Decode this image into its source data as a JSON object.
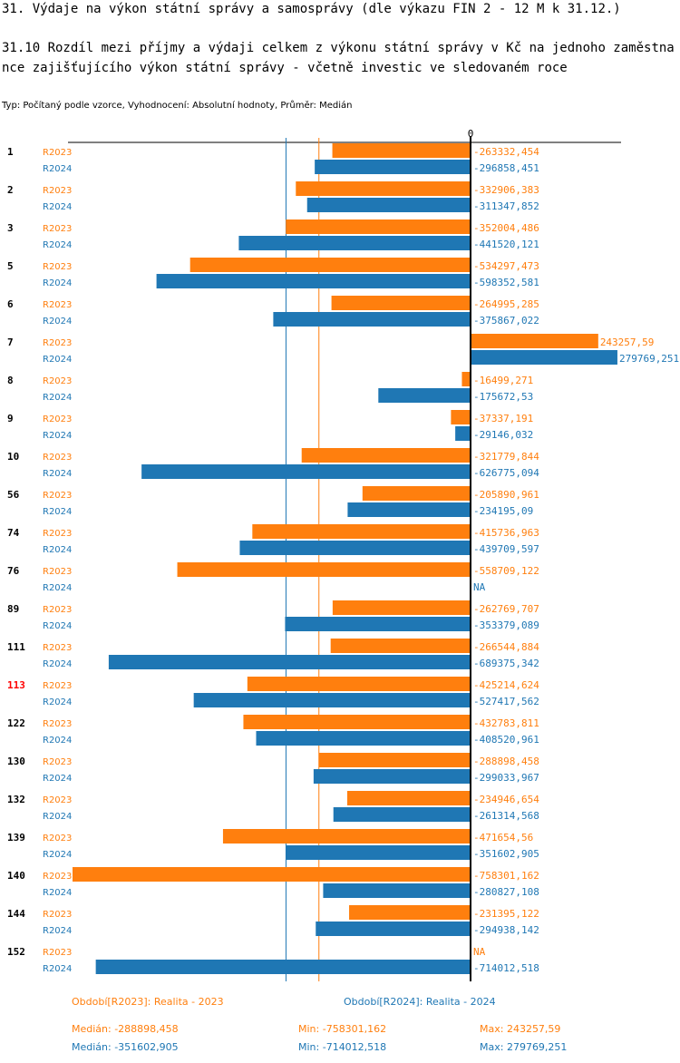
{
  "title": "31. Výdaje na výkon státní správy a samosprávy (dle výkazu FIN 2 - 12 M k 31.12.)",
  "subtitle": "31.10 Rozdíl mezi  příjmy a výdaji celkem z výkonu státní správy v Kč na jednoho zaměstnance zajišťujícího výkon státní správy - včetně investic ve sledovaném roce",
  "meta": "Typ: Počítaný podle vzorce, Vyhodnocení: Absolutní hodnoty, Průměr: Medián",
  "chart_data": {
    "type": "bar",
    "orientation": "horizontal",
    "zero_label": "0",
    "colors": {
      "R2023": "#ff7f0e",
      "R2024": "#1f77b4",
      "highlight": "#ff0000"
    },
    "highlight_category": "113",
    "categories": [
      "1",
      "2",
      "3",
      "5",
      "6",
      "7",
      "8",
      "9",
      "10",
      "56",
      "74",
      "76",
      "89",
      "111",
      "113",
      "122",
      "130",
      "132",
      "139",
      "140",
      "144",
      "152"
    ],
    "series": [
      {
        "name": "R2023",
        "values": [
          -263332.454,
          -332906.383,
          -352004.486,
          -534297.473,
          -264995.285,
          243257.59,
          -16499.271,
          -37337.191,
          -321779.844,
          -205890.961,
          -415736.963,
          -558709.122,
          -262769.707,
          -266544.884,
          -425214.624,
          -432783.811,
          -288898.458,
          -234946.654,
          -471654.56,
          -758301.162,
          -231395.122,
          null
        ],
        "labels": [
          "-263332,454",
          "-332906,383",
          "-352004,486",
          "-534297,473",
          "-264995,285",
          "243257,59",
          "-16499,271",
          "-37337,191",
          "-321779,844",
          "-205890,961",
          "-415736,963",
          "-558709,122",
          "-262769,707",
          "-266544,884",
          "-425214,624",
          "-432783,811",
          "-288898,458",
          "-234946,654",
          "-471654,56",
          "-758301,162",
          "-231395,122",
          "NA"
        ]
      },
      {
        "name": "R2024",
        "values": [
          -296858.451,
          -311347.852,
          -441520.121,
          -598352.581,
          -375867.022,
          279769.251,
          -175672.53,
          -29146.032,
          -626775.094,
          -234195.09,
          -439709.597,
          null,
          -353379.089,
          -689375.342,
          -527417.562,
          -408520.961,
          -299033.967,
          -261314.568,
          -351602.905,
          -280827.108,
          -294938.142,
          -714012.518
        ],
        "labels": [
          "-296858,451",
          "-311347,852",
          "-441520,121",
          "-598352,581",
          "-375867,022",
          "279769,251",
          "-175672,53",
          "-29146,032",
          "-626775,094",
          "-234195,09",
          "-439709,597",
          "NA",
          "-353379,089",
          "-689375,342",
          "-527417,562",
          "-408520,961",
          "-299033,967",
          "-261314,568",
          "-351602,905",
          "-280827,108",
          "-294938,142",
          "-714012,518"
        ]
      }
    ],
    "medians": {
      "R2023": -288898.458,
      "R2024": -351602.905
    },
    "legend": {
      "R2023": "Období[R2023]: Realita - 2023",
      "R2024": "Období[R2024]: Realita - 2024"
    },
    "stats": {
      "R2023": {
        "median": "Medián: -288898,458",
        "min": "Min: -758301,162",
        "max": "Max: 243257,59"
      },
      "R2024": {
        "median": "Medián: -351602,905",
        "min": "Min: -714012,518",
        "max": "Max: 279769,251"
      }
    }
  }
}
